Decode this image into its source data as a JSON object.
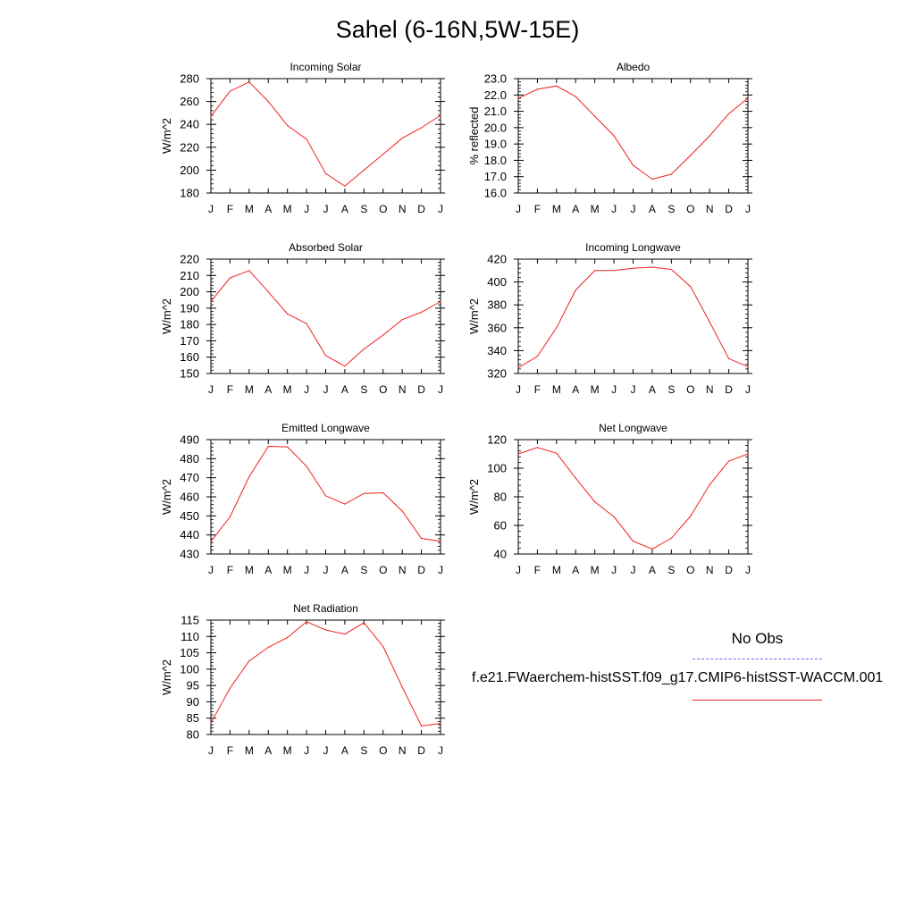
{
  "title": "Sahel (6-16N,5W-15E)",
  "legend": {
    "obs_label": "No Obs",
    "model_label": "f.e21.FWaerchem-histSST.f09_g17.CMIP6-histSST-WACCM.001",
    "obs_color": "#6b6bf0",
    "model_color": "#f02020"
  },
  "chart_data": [
    {
      "type": "line",
      "title": "Incoming Solar",
      "ylabel": "W/m^2",
      "categories": [
        "J",
        "F",
        "M",
        "A",
        "M",
        "J",
        "J",
        "A",
        "S",
        "O",
        "N",
        "D",
        "J"
      ],
      "ylim": [
        180,
        280
      ],
      "yticks": [
        180,
        200,
        220,
        240,
        260,
        280
      ],
      "yticklabels": [
        "180",
        "200",
        "220",
        "240",
        "260",
        "280"
      ],
      "series": [
        {
          "values": [
            247,
            269,
            277,
            260,
            239,
            227,
            197,
            186,
            200,
            214,
            228,
            237,
            248
          ]
        }
      ]
    },
    {
      "type": "line",
      "title": "Albedo",
      "ylabel": "% reflected",
      "categories": [
        "J",
        "F",
        "M",
        "A",
        "M",
        "J",
        "J",
        "A",
        "S",
        "O",
        "N",
        "D",
        "J"
      ],
      "ylim": [
        16.0,
        23.0
      ],
      "yticks": [
        16,
        17,
        18,
        19,
        20,
        21,
        22,
        23
      ],
      "yticklabels": [
        "16.0",
        "17.0",
        "18.0",
        "19.0",
        "20.0",
        "21.0",
        "22.0",
        "23.0"
      ],
      "series": [
        {
          "values": [
            21.8,
            22.35,
            22.55,
            21.9,
            20.7,
            19.5,
            17.7,
            16.85,
            17.15,
            18.3,
            19.5,
            20.85,
            21.8
          ]
        }
      ]
    },
    {
      "type": "line",
      "title": "Absorbed Solar",
      "ylabel": "W/m^2",
      "categories": [
        "J",
        "F",
        "M",
        "A",
        "M",
        "J",
        "J",
        "A",
        "S",
        "O",
        "N",
        "D",
        "J"
      ],
      "ylim": [
        150,
        220
      ],
      "yticks": [
        150,
        160,
        170,
        180,
        190,
        200,
        210,
        220
      ],
      "yticklabels": [
        "150",
        "160",
        "170",
        "180",
        "190",
        "200",
        "210",
        "220"
      ],
      "series": [
        {
          "values": [
            194,
            208.5,
            213,
            200,
            186.5,
            180.5,
            161,
            154.5,
            165,
            173.5,
            183,
            187.5,
            194
          ]
        }
      ]
    },
    {
      "type": "line",
      "title": "Incoming Longwave",
      "ylabel": "W/m^2",
      "categories": [
        "J",
        "F",
        "M",
        "A",
        "M",
        "J",
        "J",
        "A",
        "S",
        "O",
        "N",
        "D",
        "J"
      ],
      "ylim": [
        320,
        420
      ],
      "yticks": [
        320,
        340,
        360,
        380,
        400,
        420
      ],
      "yticklabels": [
        "320",
        "340",
        "360",
        "380",
        "400",
        "420"
      ],
      "series": [
        {
          "values": [
            325,
            335,
            360,
            393,
            410,
            410,
            412,
            413,
            411,
            396,
            365,
            333,
            326
          ]
        }
      ]
    },
    {
      "type": "line",
      "title": "Emitted Longwave",
      "ylabel": "W/m^2",
      "categories": [
        "J",
        "F",
        "M",
        "A",
        "M",
        "J",
        "J",
        "A",
        "S",
        "O",
        "N",
        "D",
        "J"
      ],
      "ylim": [
        430,
        490
      ],
      "yticks": [
        430,
        440,
        450,
        460,
        470,
        480,
        490
      ],
      "yticklabels": [
        "430",
        "440",
        "450",
        "460",
        "470",
        "480",
        "490"
      ],
      "series": [
        {
          "values": [
            436.5,
            449.5,
            470.5,
            486.5,
            486.2,
            476,
            460.5,
            456.2,
            461.8,
            462.1,
            452.5,
            438.2,
            436.6
          ]
        }
      ]
    },
    {
      "type": "line",
      "title": "Net Longwave",
      "ylabel": "W/m^2",
      "categories": [
        "J",
        "F",
        "M",
        "A",
        "M",
        "J",
        "J",
        "A",
        "S",
        "O",
        "N",
        "D",
        "J"
      ],
      "ylim": [
        40,
        120
      ],
      "yticks": [
        40,
        60,
        80,
        100,
        120
      ],
      "yticklabels": [
        "40",
        "60",
        "80",
        "100",
        "120"
      ],
      "series": [
        {
          "values": [
            110,
            114.5,
            110.5,
            93,
            76.5,
            66,
            49,
            43.5,
            51,
            66.5,
            88.5,
            105,
            110
          ]
        }
      ]
    },
    {
      "type": "line",
      "title": "Net Radiation",
      "ylabel": "W/m^2",
      "categories": [
        "J",
        "F",
        "M",
        "A",
        "M",
        "J",
        "J",
        "A",
        "S",
        "O",
        "N",
        "D",
        "J"
      ],
      "ylim": [
        80,
        115
      ],
      "yticks": [
        80,
        85,
        90,
        95,
        100,
        105,
        110,
        115
      ],
      "yticklabels": [
        "80",
        "85",
        "90",
        "95",
        "100",
        "105",
        "110",
        "115"
      ],
      "series": [
        {
          "values": [
            83.5,
            94.2,
            102.5,
            106.7,
            109.7,
            114.5,
            112,
            110.7,
            114.2,
            106.9,
            94.5,
            82.6,
            83.4
          ]
        }
      ]
    }
  ]
}
